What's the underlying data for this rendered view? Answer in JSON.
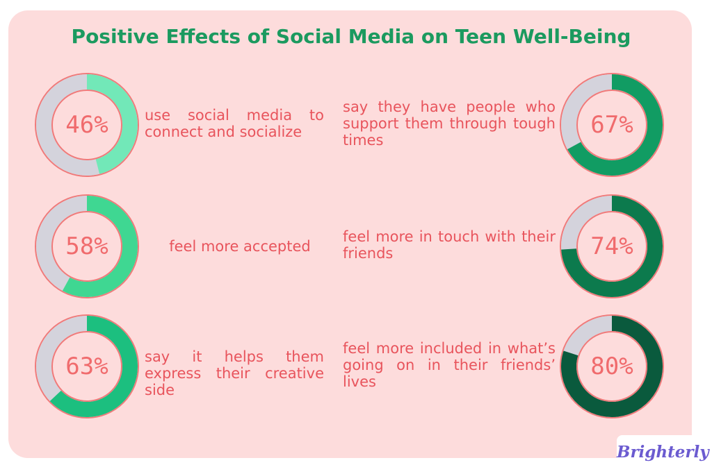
{
  "title": "Positive Effects of Social Media on Teen Well-Being",
  "chart_data": [
    {
      "type": "donut",
      "values": [
        46
      ],
      "value_labels": [
        "46%"
      ],
      "annotation": "use social media to connect and socialize",
      "color": "#72e8b8"
    },
    {
      "type": "donut",
      "values": [
        58
      ],
      "value_labels": [
        "58%"
      ],
      "annotation": "feel more accepted",
      "color": "#3fd792"
    },
    {
      "type": "donut",
      "values": [
        63
      ],
      "value_labels": [
        "63%"
      ],
      "annotation": "say it helps them express their creative side",
      "color": "#1cbf7f"
    },
    {
      "type": "donut",
      "values": [
        67
      ],
      "value_labels": [
        "67%"
      ],
      "annotation": "say they have people who support them through tough times",
      "color": "#119c63"
    },
    {
      "type": "donut",
      "values": [
        74
      ],
      "value_labels": [
        "74%"
      ],
      "annotation": "feel more in touch with their friends",
      "color": "#0c7a4d"
    },
    {
      "type": "donut",
      "values": [
        80
      ],
      "value_labels": [
        "80%"
      ],
      "annotation": "feel more included in what’s going on in their friends’ lives",
      "color": "#0a5a3d"
    }
  ],
  "logo": "Brighterly"
}
